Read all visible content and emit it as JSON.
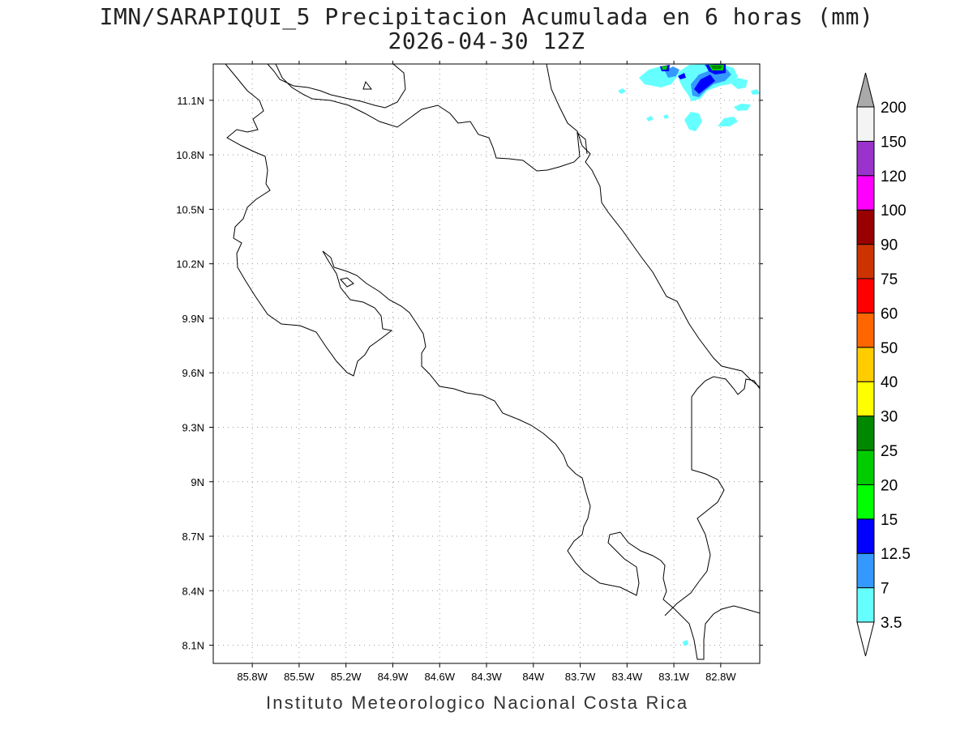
{
  "title": {
    "line1": "IMN/SARAPIQUI_5 Precipitacion Acumulada en 6 horas (mm)",
    "line2": "2026-04-30 12Z"
  },
  "footer": "Instituto Meteorologico Nacional Costa Rica",
  "map": {
    "lon_range": [
      -86.05,
      -82.55
    ],
    "lat_range": [
      8.0,
      11.3
    ],
    "x_ticks": [
      {
        "v": -85.8,
        "label": "85.8W"
      },
      {
        "v": -85.5,
        "label": "85.5W"
      },
      {
        "v": -85.2,
        "label": "85.2W"
      },
      {
        "v": -84.9,
        "label": "84.9W"
      },
      {
        "v": -84.6,
        "label": "84.6W"
      },
      {
        "v": -84.3,
        "label": "84.3W"
      },
      {
        "v": -84.0,
        "label": "84W"
      },
      {
        "v": -83.7,
        "label": "83.7W"
      },
      {
        "v": -83.4,
        "label": "83.4W"
      },
      {
        "v": -83.1,
        "label": "83.1W"
      },
      {
        "v": -82.8,
        "label": "82.8W"
      }
    ],
    "y_ticks": [
      {
        "v": 8.1,
        "label": "8.1N"
      },
      {
        "v": 8.4,
        "label": "8.4N"
      },
      {
        "v": 8.7,
        "label": "8.7N"
      },
      {
        "v": 9.0,
        "label": "9N"
      },
      {
        "v": 9.3,
        "label": "9.3N"
      },
      {
        "v": 9.6,
        "label": "9.6N"
      },
      {
        "v": 9.9,
        "label": "9.9N"
      },
      {
        "v": 10.2,
        "label": "10.2N"
      },
      {
        "v": 10.5,
        "label": "10.5N"
      },
      {
        "v": 10.8,
        "label": "10.8N"
      },
      {
        "v": 11.1,
        "label": "11.1N"
      }
    ],
    "grid": "dotted"
  },
  "colorbar": {
    "levels": [
      {
        "label": "3.5",
        "color": "#66ffff"
      },
      {
        "label": "7",
        "color": "#3399ff"
      },
      {
        "label": "12.5",
        "color": "#0000ff"
      },
      {
        "label": "15",
        "color": "#00ff00"
      },
      {
        "label": "20",
        "color": "#00cc00"
      },
      {
        "label": "25",
        "color": "#008800"
      },
      {
        "label": "30",
        "color": "#ffff00"
      },
      {
        "label": "40",
        "color": "#ffcc00"
      },
      {
        "label": "50",
        "color": "#ff6600"
      },
      {
        "label": "60",
        "color": "#ff0000"
      },
      {
        "label": "75",
        "color": "#cc3300"
      },
      {
        "label": "90",
        "color": "#990000"
      },
      {
        "label": "100",
        "color": "#ff00ff"
      },
      {
        "label": "120",
        "color": "#9933cc"
      },
      {
        "label": "150",
        "color": "#f4f4f4"
      },
      {
        "label": "200",
        "color": "#aaaaaa"
      }
    ],
    "bottom_arrow_color": "#ffffff",
    "top_arrow_color": "#aaaaaa"
  }
}
